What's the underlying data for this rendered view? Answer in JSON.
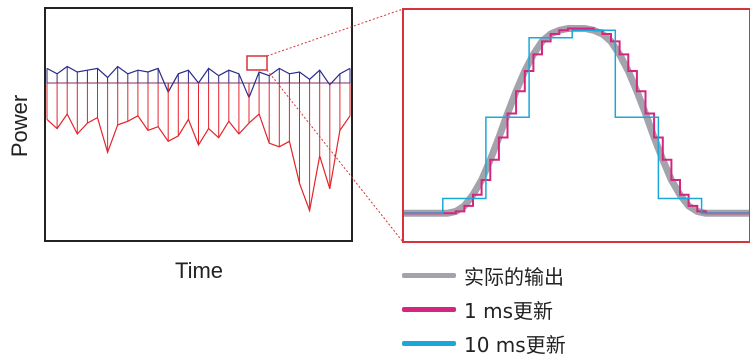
{
  "chart_data": [
    {
      "type": "line",
      "xlabel": "Time",
      "ylabel": "Power",
      "x": [
        0,
        10,
        20,
        30,
        40,
        50,
        60,
        70,
        80,
        90,
        100,
        110,
        120,
        130,
        140,
        150,
        160,
        170,
        180,
        190,
        200,
        210,
        220,
        230,
        240,
        250,
        260,
        270,
        280,
        290,
        300
      ],
      "series": [
        {
          "color": "#2a2a8a",
          "values": [
            58,
            55,
            59,
            56,
            57,
            58,
            53,
            59,
            55,
            57,
            56,
            58,
            45,
            55,
            57,
            50,
            58,
            54,
            57,
            55,
            42,
            56,
            54,
            58,
            55,
            56,
            52,
            57,
            49,
            55,
            58
          ]
        },
        {
          "color": "#e3242b",
          "values": [
            30,
            25,
            33,
            22,
            28,
            31,
            12,
            27,
            29,
            32,
            24,
            26,
            18,
            21,
            30,
            16,
            25,
            20,
            29,
            22,
            28,
            33,
            17,
            15,
            18,
            -5,
            -20,
            10,
            -8,
            24,
            32
          ]
        }
      ],
      "ylim": [
        -35,
        90
      ],
      "grid": false
    },
    {
      "type": "line",
      "x": [
        0,
        1,
        2,
        3,
        4,
        5,
        6,
        7,
        8,
        9,
        10,
        11,
        12,
        13,
        14,
        15,
        16,
        17,
        18,
        19,
        20,
        21,
        22,
        23,
        24,
        25,
        26,
        27,
        28,
        29,
        30,
        31,
        32,
        33,
        34,
        35,
        36,
        37,
        38,
        39,
        40
      ],
      "series": [
        {
          "name": "实际的输出",
          "color": "#a3a3ac",
          "values": [
            0,
            0,
            0,
            0,
            0,
            0,
            0.01,
            0.04,
            0.1,
            0.18,
            0.29,
            0.41,
            0.54,
            0.66,
            0.77,
            0.86,
            0.93,
            0.97,
            0.99,
            1,
            1,
            1,
            0.99,
            0.97,
            0.93,
            0.86,
            0.77,
            0.66,
            0.54,
            0.41,
            0.29,
            0.18,
            0.1,
            0.04,
            0.01,
            0,
            0,
            0,
            0,
            0,
            0
          ]
        },
        {
          "name": "1 ms更新",
          "color": "#d6257f",
          "values": [
            0,
            0,
            0,
            0,
            0,
            0,
            0.01,
            0.04,
            0.1,
            0.18,
            0.29,
            0.41,
            0.54,
            0.66,
            0.77,
            0.86,
            0.93,
            0.97,
            0.99,
            1,
            1,
            1,
            0.99,
            0.97,
            0.93,
            0.86,
            0.77,
            0.66,
            0.54,
            0.41,
            0.29,
            0.18,
            0.1,
            0.04,
            0.01,
            0,
            0,
            0,
            0,
            0,
            0
          ]
        },
        {
          "name": "10 ms更新",
          "color": "#1ba8d8",
          "step_x": [
            0,
            4.5,
            9.5,
            14.5,
            19.5,
            24.5,
            29.5,
            34.5,
            40
          ],
          "step_values": [
            0,
            0.08,
            0.52,
            0.95,
            0.99,
            0.52,
            0.08,
            0,
            0
          ]
        }
      ],
      "ylim": [
        -0.15,
        1.1
      ],
      "grid": false
    }
  ],
  "legend": [
    {
      "label": "实际的输出",
      "color": "#a3a3ac"
    },
    {
      "label": "1 ms更新",
      "color": "#d6257f"
    },
    {
      "label": "10 ms更新",
      "color": "#1ba8d8"
    }
  ],
  "colors": {
    "frame": "#222222",
    "zoom_frame": "#d6343a",
    "zoom_lines": "#d6343a"
  }
}
